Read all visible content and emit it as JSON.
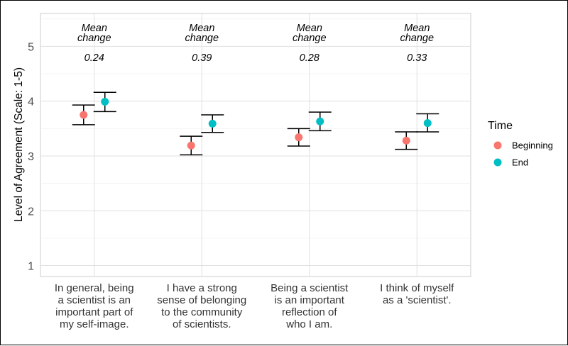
{
  "chart_data": {
    "type": "scatter",
    "ylabel": "Level of Agreement (Scale: 1-5)",
    "xlabel": "",
    "ylim": [
      0.8,
      5.6
    ],
    "yticks": [
      1,
      2,
      3,
      4,
      5
    ],
    "categories": [
      [
        "In general, being",
        "a scientist is an",
        "important part of",
        "my self-image."
      ],
      [
        "I have a strong",
        "sense of belonging",
        "to the community",
        "of scientists."
      ],
      [
        "Being a scientist",
        "is an important",
        "reflection of",
        "who I am."
      ],
      [
        "I think of myself",
        "as a 'scientist'."
      ]
    ],
    "series": [
      {
        "name": "Beginning",
        "color": "#F8766D",
        "values": [
          3.75,
          3.19,
          3.34,
          3.28
        ],
        "lower": [
          3.57,
          3.02,
          3.18,
          3.12
        ],
        "upper": [
          3.93,
          3.36,
          3.5,
          3.44
        ]
      },
      {
        "name": "End",
        "color": "#00BFC4",
        "values": [
          3.99,
          3.59,
          3.63,
          3.6
        ],
        "lower": [
          3.81,
          3.43,
          3.46,
          3.44
        ],
        "upper": [
          4.16,
          3.75,
          3.8,
          3.77
        ]
      }
    ],
    "annotations": [
      {
        "label": [
          "Mean",
          "change"
        ],
        "value": "0.24"
      },
      {
        "label": [
          "Mean",
          "change"
        ],
        "value": "0.39"
      },
      {
        "label": [
          "Mean",
          "change"
        ],
        "value": "0.28"
      },
      {
        "label": [
          "Mean",
          "change"
        ],
        "value": "0.33"
      }
    ],
    "legend": {
      "title": "Time",
      "position": "right"
    }
  }
}
